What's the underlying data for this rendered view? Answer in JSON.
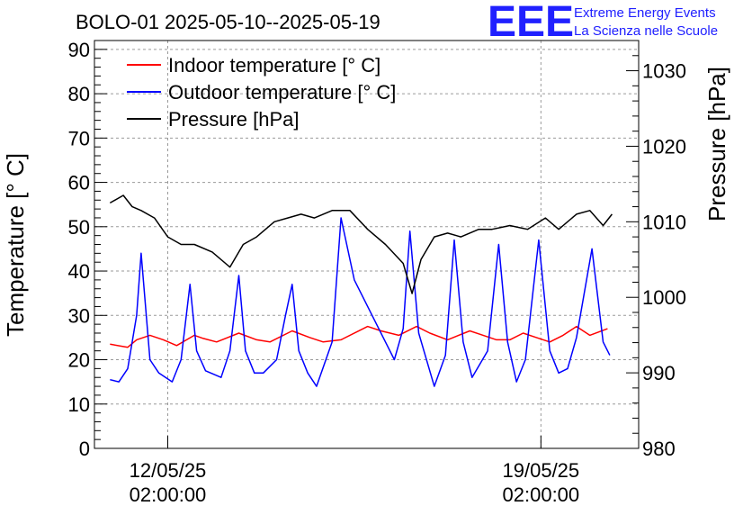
{
  "title": "BOLO-01 2025-05-10--2025-05-19",
  "logo": {
    "mark": "EEE",
    "line1": "Extreme Energy Events",
    "line2": "La Scienza nelle Scuole",
    "color": "#2020ff"
  },
  "chart_data": {
    "type": "line",
    "title": "BOLO-01 2025-05-10--2025-05-19",
    "ylabel": "Temperature [° C]",
    "y2label": "Pressure [hPa]",
    "ylim": [
      0,
      92
    ],
    "y2lim": [
      980,
      1034
    ],
    "yticks": [
      0,
      10,
      20,
      30,
      40,
      50,
      60,
      70,
      80,
      90
    ],
    "y2ticks": [
      980,
      990,
      1000,
      1010,
      1020,
      1030
    ],
    "xlim": [
      "2025-05-10T17:00",
      "2025-05-20T22:00"
    ],
    "xticks": [
      {
        "t": "2025-05-12T02:00",
        "date": "12/05/25",
        "time": "02:00:00"
      },
      {
        "t": "2025-05-19T02:00",
        "date": "19/05/25",
        "time": "02:00:00"
      }
    ],
    "grid": true,
    "legend_position": "top-left",
    "series": [
      {
        "name": "Indoor temperature [° C]",
        "color": "#ff0000",
        "axis": "left",
        "x": [
          "2025-05-11T00:00",
          "2025-05-11T08:00",
          "2025-05-11T12:00",
          "2025-05-11T18:00",
          "2025-05-12T00:00",
          "2025-05-12T06:00",
          "2025-05-12T14:00",
          "2025-05-12T18:00",
          "2025-05-13T00:00",
          "2025-05-13T10:00",
          "2025-05-13T18:00",
          "2025-05-14T00:00",
          "2025-05-14T10:00",
          "2025-05-14T18:00",
          "2025-05-15T00:00",
          "2025-05-15T08:00",
          "2025-05-15T20:00",
          "2025-05-16T02:00",
          "2025-05-16T10:00",
          "2025-05-16T18:00",
          "2025-05-17T00:00",
          "2025-05-17T08:00",
          "2025-05-17T18:00",
          "2025-05-18T00:00",
          "2025-05-18T06:00",
          "2025-05-18T12:00",
          "2025-05-18T18:00",
          "2025-05-19T00:00",
          "2025-05-19T06:00",
          "2025-05-19T12:00",
          "2025-05-19T18:00",
          "2025-05-20T00:00",
          "2025-05-20T08:00"
        ],
        "y": [
          23.5,
          22.8,
          24.5,
          25.5,
          24.5,
          23.2,
          25.5,
          24.8,
          24.0,
          26.0,
          24.5,
          24.0,
          26.5,
          25.0,
          24.0,
          24.5,
          27.5,
          26.5,
          25.5,
          27.5,
          26.0,
          24.5,
          26.5,
          25.5,
          24.5,
          24.5,
          26.0,
          25.0,
          24.0,
          25.5,
          27.5,
          25.5,
          27.0
        ]
      },
      {
        "name": "Outdoor temperature [° C]",
        "color": "#0000ff",
        "axis": "left",
        "x": [
          "2025-05-11T00:00",
          "2025-05-11T04:00",
          "2025-05-11T08:00",
          "2025-05-11T12:00",
          "2025-05-11T14:00",
          "2025-05-11T18:00",
          "2025-05-11T22:00",
          "2025-05-12T04:00",
          "2025-05-12T08:00",
          "2025-05-12T12:00",
          "2025-05-12T15:00",
          "2025-05-12T19:00",
          "2025-05-13T02:00",
          "2025-05-13T06:00",
          "2025-05-13T10:00",
          "2025-05-13T13:00",
          "2025-05-13T17:00",
          "2025-05-13T21:00",
          "2025-05-14T03:00",
          "2025-05-14T07:00",
          "2025-05-14T10:00",
          "2025-05-14T13:00",
          "2025-05-14T17:00",
          "2025-05-14T21:00",
          "2025-05-15T04:00",
          "2025-05-15T08:00",
          "2025-05-15T14:00",
          "2025-05-16T08:00",
          "2025-05-16T12:00",
          "2025-05-16T15:00",
          "2025-05-16T19:00",
          "2025-05-17T02:00",
          "2025-05-17T07:00",
          "2025-05-17T11:00",
          "2025-05-17T15:00",
          "2025-05-17T19:00",
          "2025-05-18T02:00",
          "2025-05-18T07:00",
          "2025-05-18T11:00",
          "2025-05-18T15:00",
          "2025-05-18T19:00",
          "2025-05-19T01:00",
          "2025-05-19T06:00",
          "2025-05-19T10:00",
          "2025-05-19T14:00",
          "2025-05-19T18:00",
          "2025-05-20T01:00",
          "2025-05-20T06:00",
          "2025-05-20T09:00"
        ],
        "y": [
          15.5,
          15.0,
          18.0,
          30.0,
          44.0,
          20.0,
          17.0,
          15.0,
          20.0,
          37.0,
          22.0,
          17.5,
          16.0,
          22.0,
          39.0,
          22.0,
          17.0,
          17.0,
          20.0,
          30.0,
          37.0,
          22.0,
          17.0,
          14.0,
          24.0,
          52.0,
          38.0,
          20.0,
          27.0,
          49.0,
          26.0,
          14.0,
          21.0,
          47.0,
          24.0,
          16.0,
          22.0,
          46.0,
          24.0,
          15.0,
          20.0,
          47.0,
          22.0,
          17.0,
          18.0,
          25.0,
          45.0,
          24.0,
          21.0
        ]
      },
      {
        "name": "Pressure [hPa]",
        "color": "#000000",
        "axis": "right",
        "x": [
          "2025-05-11T00:00",
          "2025-05-11T06:00",
          "2025-05-11T10:00",
          "2025-05-11T14:00",
          "2025-05-11T20:00",
          "2025-05-12T02:00",
          "2025-05-12T08:00",
          "2025-05-12T14:00",
          "2025-05-12T22:00",
          "2025-05-13T06:00",
          "2025-05-13T12:00",
          "2025-05-13T18:00",
          "2025-05-14T02:00",
          "2025-05-14T08:00",
          "2025-05-14T14:00",
          "2025-05-14T20:00",
          "2025-05-15T04:00",
          "2025-05-15T12:00",
          "2025-05-15T20:00",
          "2025-05-16T04:00",
          "2025-05-16T12:00",
          "2025-05-16T16:00",
          "2025-05-16T20:00",
          "2025-05-17T02:00",
          "2025-05-17T08:00",
          "2025-05-17T14:00",
          "2025-05-17T22:00",
          "2025-05-18T04:00",
          "2025-05-18T12:00",
          "2025-05-18T20:00",
          "2025-05-19T04:00",
          "2025-05-19T10:00",
          "2025-05-19T18:00",
          "2025-05-20T00:00",
          "2025-05-20T06:00",
          "2025-05-20T10:00"
        ],
        "y": [
          1012.5,
          1013.5,
          1012.0,
          1011.5,
          1010.5,
          1008.0,
          1007.0,
          1007.0,
          1006.0,
          1004.0,
          1007.0,
          1008.0,
          1010.0,
          1010.5,
          1011.0,
          1010.5,
          1011.5,
          1011.5,
          1009.0,
          1007.0,
          1004.5,
          1000.5,
          1005.0,
          1008.0,
          1008.5,
          1008.0,
          1009.0,
          1009.0,
          1009.5,
          1009.0,
          1010.5,
          1009.0,
          1011.0,
          1011.5,
          1009.5,
          1011.0
        ]
      }
    ]
  }
}
